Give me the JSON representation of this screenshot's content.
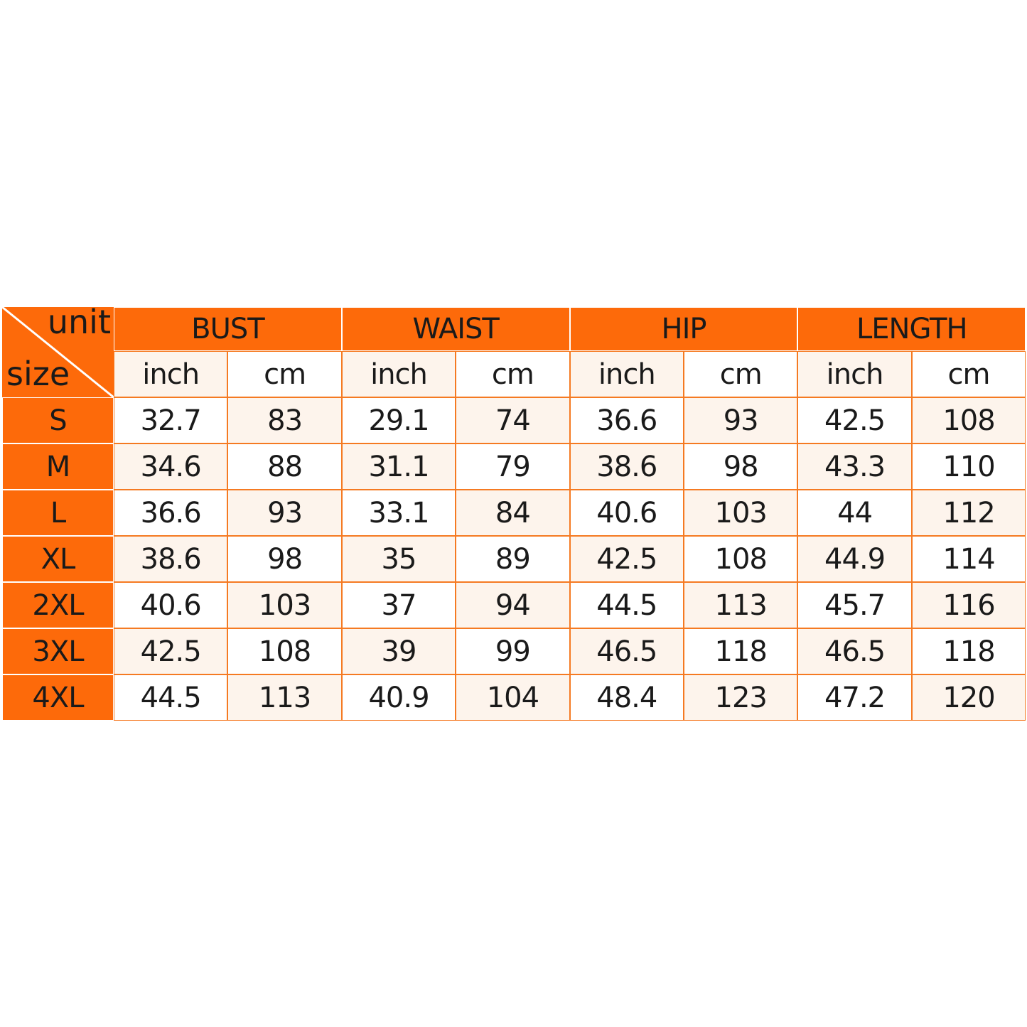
{
  "table": {
    "corner": {
      "top_label": "unit",
      "bottom_label": "size"
    },
    "groups": [
      "BUST",
      "WAIST",
      "HIP",
      "LENGTH"
    ],
    "units": [
      "inch",
      "cm"
    ],
    "rows": [
      {
        "size": "S",
        "values": [
          "32.7",
          "83",
          "29.1",
          "74",
          "36.6",
          "93",
          "42.5",
          "108"
        ]
      },
      {
        "size": "M",
        "values": [
          "34.6",
          "88",
          "31.1",
          "79",
          "38.6",
          "98",
          "43.3",
          "110"
        ]
      },
      {
        "size": "L",
        "values": [
          "36.6",
          "93",
          "33.1",
          "84",
          "40.6",
          "103",
          "44",
          "112"
        ]
      },
      {
        "size": "XL",
        "values": [
          "38.6",
          "98",
          "35",
          "89",
          "42.5",
          "108",
          "44.9",
          "114"
        ]
      },
      {
        "size": "2XL",
        "values": [
          "40.6",
          "103",
          "37",
          "94",
          "44.5",
          "113",
          "45.7",
          "116"
        ]
      },
      {
        "size": "3XL",
        "values": [
          "42.5",
          "108",
          "39",
          "99",
          "46.5",
          "118",
          "46.5",
          "118"
        ]
      },
      {
        "size": "4XL",
        "values": [
          "44.5",
          "113",
          "40.9",
          "104",
          "48.4",
          "123",
          "47.2",
          "120"
        ]
      }
    ]
  },
  "colors": {
    "accent": "#fd6a0a",
    "grid": "#f57a22",
    "alt_cell": "#fdf4ec"
  }
}
